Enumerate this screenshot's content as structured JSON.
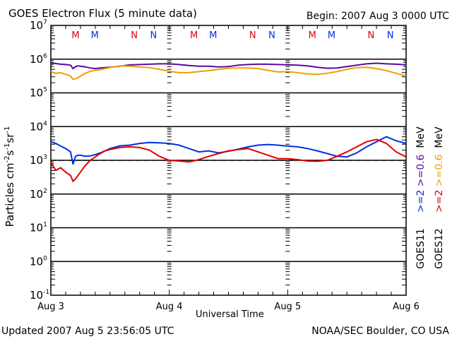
{
  "header": {
    "title": "GOES Electron Flux (5 minute data)",
    "begin": "Begin: 2007 Aug 3 0000 UTC"
  },
  "footer": {
    "updated": "Updated 2007 Aug  5 23:56:05 UTC",
    "source": "NOAA/SEC Boulder, CO USA"
  },
  "legend": {
    "goes11": {
      "label": "GOES11",
      "e2": ">=2",
      "e06": ">=0.6",
      "unit": "MeV"
    },
    "goes12": {
      "label": "GOES12",
      "e2": ">=2",
      "e06": ">=0.6",
      "unit": "MeV"
    }
  },
  "chart_data": {
    "type": "line",
    "title": "GOES Electron Flux (5 minute data)",
    "xlabel": "Universal Time",
    "ylabel": "Particles cm-2 s-1 sr-1",
    "yscale": "log",
    "ylim": [
      0.1,
      10000000
    ],
    "xlim_hours": [
      0,
      72
    ],
    "x_ticks": [
      {
        "hour": 0,
        "label": "Aug 3"
      },
      {
        "hour": 24,
        "label": "Aug 4"
      },
      {
        "hour": 48,
        "label": "Aug 5"
      },
      {
        "hour": 72,
        "label": "Aug 6"
      }
    ],
    "y_ticks": [
      {
        "exp": 7,
        "label": "10",
        "sup": "7"
      },
      {
        "exp": 6,
        "label": "10",
        "sup": "6"
      },
      {
        "exp": 5,
        "label": "10",
        "sup": "5"
      },
      {
        "exp": 4,
        "label": "10",
        "sup": "4"
      },
      {
        "exp": 3,
        "label": "10",
        "sup": "3"
      },
      {
        "exp": 2,
        "label": "10",
        "sup": "2"
      },
      {
        "exp": 1,
        "label": "10",
        "sup": "1"
      },
      {
        "exp": 0,
        "label": "10",
        "sup": "0"
      },
      {
        "exp": -1,
        "label": "10",
        "sup": "-1"
      }
    ],
    "threshold": {
      "value": 1000,
      "style": "dashed"
    },
    "markers": [
      {
        "text": "M",
        "hour": 5.0,
        "color": "#e00000"
      },
      {
        "text": "M",
        "hour": 8.9,
        "color": "#0030e0"
      },
      {
        "text": "N",
        "hour": 16.9,
        "color": "#e00000"
      },
      {
        "text": "N",
        "hour": 20.8,
        "color": "#0030e0"
      },
      {
        "text": "M",
        "hour": 29.0,
        "color": "#e00000"
      },
      {
        "text": "M",
        "hour": 32.9,
        "color": "#0030e0"
      },
      {
        "text": "N",
        "hour": 40.9,
        "color": "#e00000"
      },
      {
        "text": "N",
        "hour": 44.8,
        "color": "#0030e0"
      },
      {
        "text": "M",
        "hour": 53.0,
        "color": "#e00000"
      },
      {
        "text": "M",
        "hour": 56.9,
        "color": "#0030e0"
      },
      {
        "text": "N",
        "hour": 64.9,
        "color": "#e00000"
      },
      {
        "text": "N",
        "hour": 68.8,
        "color": "#0030e0"
      }
    ],
    "series": [
      {
        "name": "GOES11 >=0.6 MeV",
        "color": "#5a0aa0",
        "x_hours": [
          0,
          1,
          2,
          3,
          4,
          4.5,
          5,
          5.5,
          6,
          7,
          8,
          9,
          10,
          11,
          12,
          14,
          16,
          18,
          20,
          22,
          24,
          26,
          28,
          30,
          32,
          34,
          36,
          38,
          40,
          42,
          44,
          46,
          48,
          50,
          52,
          54,
          56,
          58,
          60,
          62,
          64,
          66,
          68,
          70,
          72
        ],
        "log10": [
          5.89,
          5.87,
          5.85,
          5.84,
          5.82,
          5.72,
          5.78,
          5.8,
          5.79,
          5.77,
          5.74,
          5.72,
          5.74,
          5.75,
          5.76,
          5.79,
          5.83,
          5.84,
          5.85,
          5.86,
          5.86,
          5.84,
          5.81,
          5.79,
          5.79,
          5.77,
          5.78,
          5.82,
          5.84,
          5.85,
          5.85,
          5.84,
          5.83,
          5.82,
          5.8,
          5.76,
          5.73,
          5.74,
          5.78,
          5.82,
          5.86,
          5.88,
          5.86,
          5.85,
          5.83
        ]
      },
      {
        "name": "GOES12 >=0.6 MeV",
        "color": "#f0a000",
        "x_hours": [
          0,
          1,
          2,
          3,
          4,
          4.5,
          5,
          5.5,
          6,
          7,
          8,
          9,
          10,
          11,
          12,
          14,
          16,
          18,
          20,
          22,
          24,
          26,
          28,
          30,
          32,
          34,
          36,
          38,
          40,
          42,
          44,
          46,
          48,
          50,
          52,
          54,
          56,
          58,
          60,
          62,
          64,
          66,
          68,
          70,
          72
        ],
        "log10": [
          5.63,
          5.58,
          5.6,
          5.55,
          5.5,
          5.4,
          5.42,
          5.45,
          5.5,
          5.58,
          5.64,
          5.67,
          5.69,
          5.72,
          5.75,
          5.8,
          5.79,
          5.77,
          5.75,
          5.7,
          5.64,
          5.6,
          5.6,
          5.63,
          5.66,
          5.7,
          5.73,
          5.74,
          5.74,
          5.72,
          5.67,
          5.62,
          5.63,
          5.6,
          5.56,
          5.55,
          5.58,
          5.63,
          5.7,
          5.75,
          5.76,
          5.72,
          5.66,
          5.58,
          5.5
        ]
      },
      {
        "name": "GOES11 >=2 MeV",
        "color": "#0030e0",
        "x_hours": [
          0,
          1,
          2,
          3,
          4,
          4.5,
          5,
          5.5,
          6,
          7,
          8,
          9,
          10,
          11,
          12,
          14,
          16,
          18,
          20,
          22,
          24,
          26,
          28,
          30,
          32,
          34,
          36,
          38,
          40,
          42,
          44,
          46,
          48,
          50,
          52,
          54,
          56,
          58,
          60,
          62,
          64,
          66,
          68,
          70,
          72
        ],
        "log10": [
          3.55,
          3.5,
          3.42,
          3.35,
          3.25,
          2.88,
          3.12,
          3.15,
          3.15,
          3.12,
          3.13,
          3.17,
          3.22,
          3.28,
          3.35,
          3.43,
          3.45,
          3.5,
          3.53,
          3.52,
          3.5,
          3.45,
          3.35,
          3.25,
          3.28,
          3.22,
          3.27,
          3.33,
          3.4,
          3.45,
          3.47,
          3.45,
          3.42,
          3.4,
          3.35,
          3.28,
          3.2,
          3.12,
          3.1,
          3.22,
          3.4,
          3.55,
          3.7,
          3.58,
          3.5
        ]
      },
      {
        "name": "GOES12 >=2 MeV",
        "color": "#e00000",
        "x_hours": [
          0,
          1,
          2,
          3,
          4,
          4.5,
          5,
          5.5,
          6,
          7,
          8,
          9,
          10,
          11,
          12,
          14,
          16,
          18,
          20,
          22,
          24,
          26,
          28,
          30,
          32,
          34,
          36,
          38,
          40,
          42,
          44,
          46,
          48,
          50,
          52,
          54,
          56,
          58,
          60,
          62,
          64,
          66,
          68,
          70,
          72
        ],
        "log10": [
          2.95,
          2.7,
          2.78,
          2.65,
          2.55,
          2.38,
          2.45,
          2.55,
          2.65,
          2.85,
          3.0,
          3.1,
          3.2,
          3.28,
          3.32,
          3.38,
          3.4,
          3.38,
          3.3,
          3.12,
          3.0,
          2.98,
          2.95,
          3.02,
          3.12,
          3.2,
          3.28,
          3.32,
          3.35,
          3.25,
          3.15,
          3.05,
          3.05,
          3.02,
          2.98,
          2.97,
          3.0,
          3.12,
          3.25,
          3.4,
          3.55,
          3.62,
          3.5,
          3.25,
          3.1
        ]
      }
    ]
  }
}
